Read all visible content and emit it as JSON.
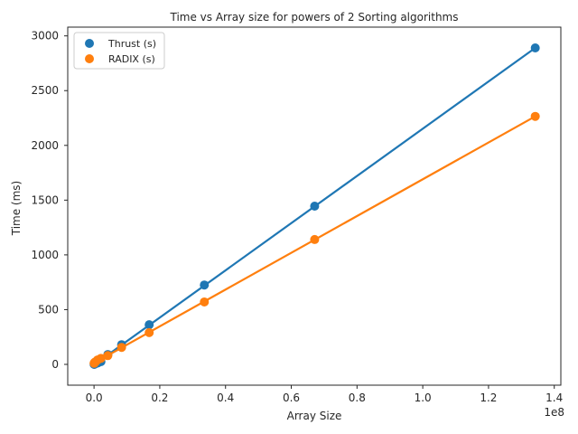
{
  "chart_data": {
    "type": "scatter",
    "title": "Time vs Array size for powers of 2 Sorting algorithms",
    "xlabel": "Array Size",
    "ylabel": "Time (ms)",
    "x_offset_text": "1e8",
    "xlim": [
      -8000000,
      142000000
    ],
    "ylim": [
      -190,
      3080
    ],
    "x_ticks": [
      0,
      20000000,
      40000000,
      60000000,
      80000000,
      100000000,
      120000000,
      140000000
    ],
    "x_tick_labels": [
      "0.0",
      "0.2",
      "0.4",
      "0.6",
      "0.8",
      "1.0",
      "1.2",
      "1.4"
    ],
    "y_ticks": [
      0,
      500,
      1000,
      1500,
      2000,
      2500,
      3000
    ],
    "y_tick_labels": [
      "0",
      "500",
      "1000",
      "1500",
      "2000",
      "2500",
      "3000"
    ],
    "grid": false,
    "legend_position": "top-left",
    "x": [
      32768,
      65536,
      131072,
      262144,
      524288,
      1048576,
      2097152,
      4194304,
      8388608,
      16777216,
      33554432,
      67108864,
      134217728
    ],
    "series": [
      {
        "name": "Thrust (s)",
        "color": "#1f77b4",
        "values": [
          1,
          1,
          2,
          4,
          7,
          12,
          25,
          90,
          180,
          362,
          725,
          1445,
          2890
        ],
        "fit_line": [
          -3,
          2890
        ]
      },
      {
        "name": "RADIX (s)",
        "color": "#ff7f0e",
        "values": [
          10,
          12,
          15,
          20,
          25,
          40,
          55,
          80,
          155,
          290,
          570,
          1140,
          2265
        ],
        "fit_line": [
          12,
          2265
        ]
      }
    ]
  }
}
